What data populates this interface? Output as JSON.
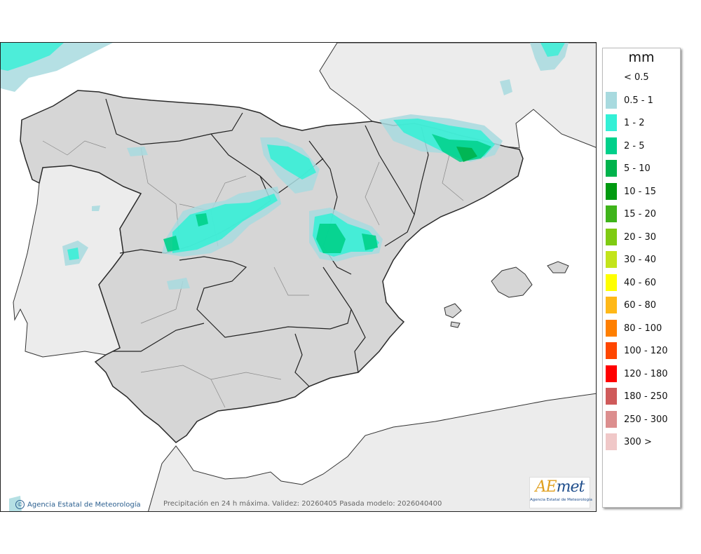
{
  "map": {
    "caption": "Precipitación en 24 h máxima. Validez: 20260405 Pasada modelo: 2026040400",
    "credit": "Agencia Estatal de Meteorología",
    "credit_icon": "copyright-icon"
  },
  "logo": {
    "mark_a": "AE",
    "mark_rest": "met",
    "subtitle": "Agencia Estatal de Meteorología"
  },
  "legend": {
    "title": "mm",
    "items": [
      {
        "label": "< 0.5",
        "color": "#ffffff"
      },
      {
        "label": "0.5 - 1",
        "color": "#a8dadf"
      },
      {
        "label": "1 - 2",
        "color": "#33f0d6"
      },
      {
        "label": "2 - 5",
        "color": "#00d08a"
      },
      {
        "label": "5 - 10",
        "color": "#00b34c"
      },
      {
        "label": "10 - 15",
        "color": "#009a10"
      },
      {
        "label": "15 - 20",
        "color": "#3fb41a"
      },
      {
        "label": "20 - 30",
        "color": "#7fcb12"
      },
      {
        "label": "30 - 40",
        "color": "#c3e41a"
      },
      {
        "label": "40 - 60",
        "color": "#ffff00"
      },
      {
        "label": "60 - 80",
        "color": "#ffb817"
      },
      {
        "label": "80 - 100",
        "color": "#ff7f00"
      },
      {
        "label": "100 - 120",
        "color": "#ff4600"
      },
      {
        "label": "120 - 180",
        "color": "#ff0000"
      },
      {
        "label": "180 - 250",
        "color": "#cf5a5a"
      },
      {
        "label": "250 - 300",
        "color": "#dc8e8e"
      },
      {
        "label": "300 >",
        "color": "#f0c8c8"
      }
    ]
  }
}
